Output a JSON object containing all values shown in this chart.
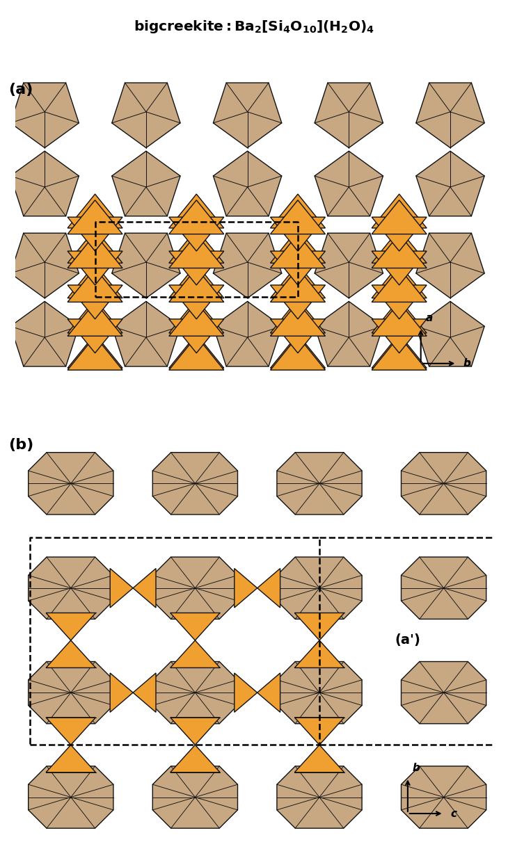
{
  "tan_fill": "#C8A882",
  "orange_fill": "#F0A030",
  "edge_color": "#111111",
  "background": "#ffffff",
  "label_a": "(a)",
  "label_b": "(b)",
  "label_ap": "(a')"
}
